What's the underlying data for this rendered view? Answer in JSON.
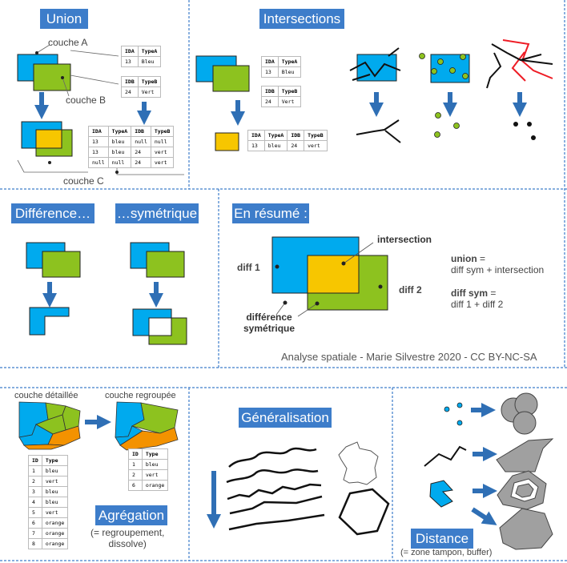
{
  "titles": {
    "union": "Union",
    "intersections": "Intersections",
    "difference": "Différence…",
    "symetrique": "…symétrique",
    "resume": "En résumé :",
    "generalisation": "Généralisation",
    "agregation": "Agrégation",
    "distance": "Distance"
  },
  "union": {
    "couche_a": "couche A",
    "couche_b": "couche B",
    "couche_c": "couche C",
    "table_a": [
      [
        "IDA",
        "TypeA"
      ],
      [
        "13",
        "Bleu"
      ]
    ],
    "table_b": [
      [
        "IDB",
        "TypeB"
      ],
      [
        "24",
        "Vert"
      ]
    ],
    "table_c": [
      [
        "IDA",
        "TypeA",
        "IDB",
        "TypeB"
      ],
      [
        "13",
        "bleu",
        "null",
        "null"
      ],
      [
        "13",
        "bleu",
        "24",
        "vert"
      ],
      [
        "null",
        "null",
        "24",
        "vert"
      ]
    ]
  },
  "intersections": {
    "table_a": [
      [
        "IDA",
        "TypeA"
      ],
      [
        "13",
        "Bleu"
      ]
    ],
    "table_b": [
      [
        "IDB",
        "TypeB"
      ],
      [
        "24",
        "Vert"
      ]
    ],
    "table_c": [
      [
        "IDA",
        "TypeA",
        "IDB",
        "TypeB"
      ],
      [
        "13",
        "bleu",
        "24",
        "vert"
      ]
    ]
  },
  "resume": {
    "intersection": "intersection",
    "diff1": "diff 1",
    "diff2": "diff 2",
    "diff_sym_1": "différence",
    "diff_sym_2": "symétrique",
    "union_key": "union",
    "union_eq": " =",
    "union_def": "diff sym + intersection",
    "diffsym_key": "diff sym",
    "diffsym_eq": " =",
    "diffsym_def": "diff 1 + diff 2"
  },
  "credit": "Analyse spatiale - Marie Silvestre 2020 - CC BY-NC-SA",
  "agregation": {
    "detail_label": "couche détaillée",
    "group_label": "couche regroupée",
    "note_1": "(= regroupement,",
    "note_2": "dissolve)",
    "table_detail": [
      [
        "ID",
        "Type"
      ],
      [
        "1",
        "bleu"
      ],
      [
        "2",
        "vert"
      ],
      [
        "3",
        "bleu"
      ],
      [
        "4",
        "bleu"
      ],
      [
        "5",
        "vert"
      ],
      [
        "6",
        "orange"
      ],
      [
        "7",
        "orange"
      ],
      [
        "8",
        "orange"
      ]
    ],
    "table_group": [
      [
        "ID",
        "Type"
      ],
      [
        "1",
        "bleu"
      ],
      [
        "2",
        "vert"
      ],
      [
        "6",
        "orange"
      ]
    ]
  },
  "distance": {
    "note": "(= zone tampon, buffer)"
  },
  "colors": {
    "blue": "#00aaee",
    "green": "#8dc21f",
    "yellow": "#f7c600",
    "orange": "#f39200",
    "title_bg": "#3d7dca",
    "arrow": "#2f6fb5",
    "red": "#ee1c25",
    "grey": "#a0a0a0"
  }
}
